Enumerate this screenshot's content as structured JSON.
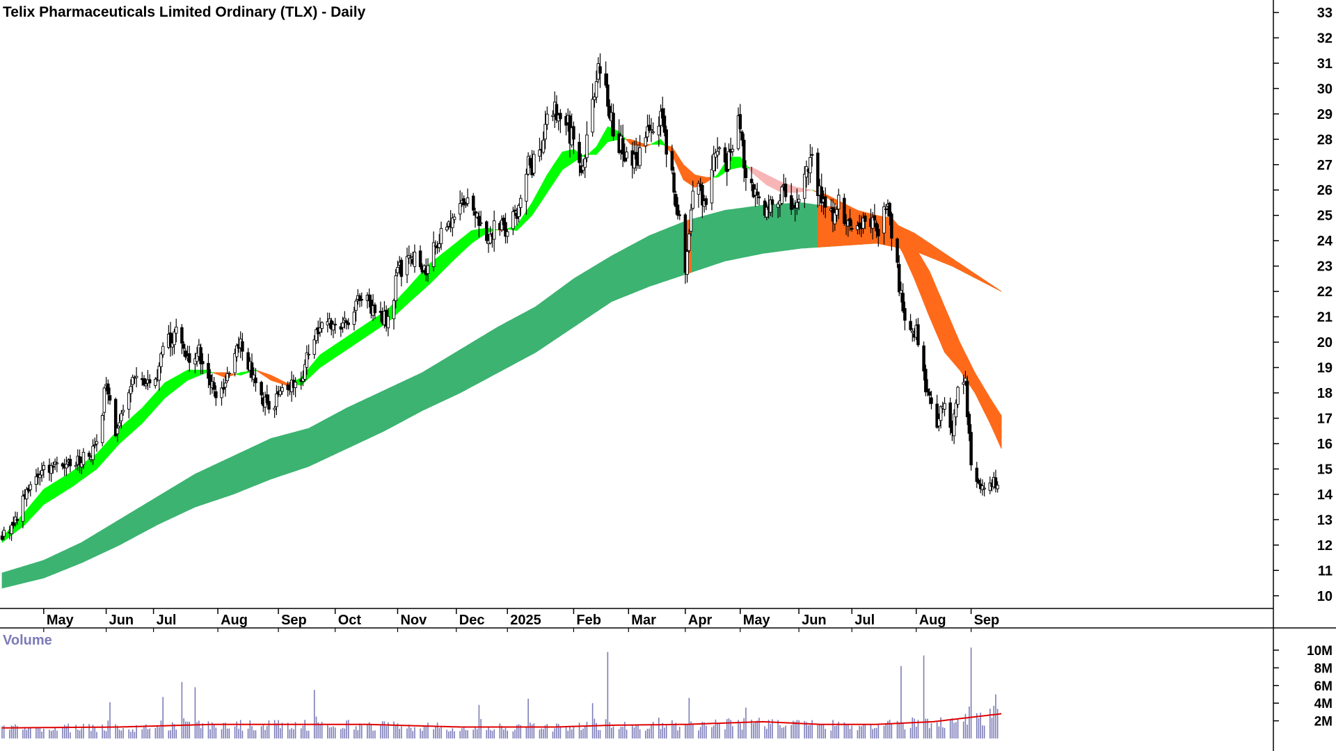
{
  "chart_data": [
    {
      "type": "candlestick",
      "title": "Telix Pharmaceuticals Limited Ordinary (TLX) - Daily",
      "ylim": [
        9.5,
        33.3
      ],
      "y_ticks": [
        10,
        11,
        12,
        13,
        14,
        15,
        16,
        17,
        18,
        19,
        20,
        21,
        22,
        23,
        24,
        25,
        26,
        27,
        28,
        29,
        30,
        31,
        32,
        33
      ],
      "x_ticks": [
        {
          "label": "May",
          "day": 60
        },
        {
          "label": "Jun",
          "day": 93
        },
        {
          "label": "Jul",
          "day": 118
        },
        {
          "label": "Aug",
          "day": 152
        },
        {
          "label": "Sep",
          "day": 184
        },
        {
          "label": "Oct",
          "day": 214
        },
        {
          "label": "Nov",
          "day": 247
        },
        {
          "label": "Dec",
          "day": 278
        },
        {
          "label": "2025",
          "day": 305
        },
        {
          "label": "Feb",
          "day": 340
        },
        {
          "label": "Mar",
          "day": 369
        },
        {
          "label": "Apr",
          "day": 399
        },
        {
          "label": "May",
          "day": 428
        },
        {
          "label": "Jun",
          "day": 459
        },
        {
          "label": "Jul",
          "day": 487
        },
        {
          "label": "Aug",
          "day": 521
        },
        {
          "label": "Sep",
          "day": 550
        }
      ],
      "x_range_days": [
        38,
        570
      ],
      "price_path": [
        {
          "day": 38,
          "close": 12.3
        },
        {
          "day": 45,
          "close": 12.9
        },
        {
          "day": 50,
          "close": 14.0
        },
        {
          "day": 55,
          "close": 14.9
        },
        {
          "day": 60,
          "close": 15.0
        },
        {
          "day": 70,
          "close": 15.2
        },
        {
          "day": 80,
          "close": 15.4
        },
        {
          "day": 88,
          "close": 15.9
        },
        {
          "day": 93,
          "close": 18.4
        },
        {
          "day": 98,
          "close": 16.4
        },
        {
          "day": 104,
          "close": 18.2
        },
        {
          "day": 110,
          "close": 18.6
        },
        {
          "day": 118,
          "close": 18.4
        },
        {
          "day": 124,
          "close": 19.8
        },
        {
          "day": 130,
          "close": 20.4
        },
        {
          "day": 136,
          "close": 19.4
        },
        {
          "day": 142,
          "close": 19.6
        },
        {
          "day": 148,
          "close": 18.6
        },
        {
          "day": 152,
          "close": 17.9
        },
        {
          "day": 157,
          "close": 18.6
        },
        {
          "day": 162,
          "close": 19.7
        },
        {
          "day": 166,
          "close": 19.9
        },
        {
          "day": 170,
          "close": 18.6
        },
        {
          "day": 175,
          "close": 17.9
        },
        {
          "day": 180,
          "close": 17.3
        },
        {
          "day": 184,
          "close": 17.8
        },
        {
          "day": 190,
          "close": 18.4
        },
        {
          "day": 195,
          "close": 18.2
        },
        {
          "day": 200,
          "close": 19.6
        },
        {
          "day": 206,
          "close": 20.6
        },
        {
          "day": 212,
          "close": 20.7
        },
        {
          "day": 218,
          "close": 20.5
        },
        {
          "day": 224,
          "close": 21.4
        },
        {
          "day": 230,
          "close": 21.8
        },
        {
          "day": 236,
          "close": 21.1
        },
        {
          "day": 242,
          "close": 20.9
        },
        {
          "day": 247,
          "close": 22.6
        },
        {
          "day": 252,
          "close": 23.5
        },
        {
          "day": 258,
          "close": 23.0
        },
        {
          "day": 263,
          "close": 22.9
        },
        {
          "day": 268,
          "close": 24.0
        },
        {
          "day": 274,
          "close": 24.9
        },
        {
          "day": 278,
          "close": 25.0
        },
        {
          "day": 284,
          "close": 25.4
        },
        {
          "day": 290,
          "close": 24.9
        },
        {
          "day": 295,
          "close": 24.2
        },
        {
          "day": 300,
          "close": 24.6
        },
        {
          "day": 305,
          "close": 24.3
        },
        {
          "day": 310,
          "close": 25.2
        },
        {
          "day": 316,
          "close": 26.9
        },
        {
          "day": 322,
          "close": 27.3
        },
        {
          "day": 328,
          "close": 29.2
        },
        {
          "day": 334,
          "close": 29.3
        },
        {
          "day": 340,
          "close": 27.8
        },
        {
          "day": 345,
          "close": 26.9
        },
        {
          "day": 350,
          "close": 29.8
        },
        {
          "day": 355,
          "close": 31.2
        },
        {
          "day": 360,
          "close": 28.7
        },
        {
          "day": 365,
          "close": 27.7
        },
        {
          "day": 370,
          "close": 27.2
        },
        {
          "day": 376,
          "close": 27.3
        },
        {
          "day": 381,
          "close": 28.6
        },
        {
          "day": 386,
          "close": 28.9
        },
        {
          "day": 391,
          "close": 26.8
        },
        {
          "day": 396,
          "close": 24.6
        },
        {
          "day": 399,
          "close": 22.6
        },
        {
          "day": 404,
          "close": 26.4
        },
        {
          "day": 410,
          "close": 25.2
        },
        {
          "day": 416,
          "close": 27.9
        },
        {
          "day": 421,
          "close": 26.7
        },
        {
          "day": 426,
          "close": 28.9
        },
        {
          "day": 431,
          "close": 26.8
        },
        {
          "day": 436,
          "close": 25.9
        },
        {
          "day": 441,
          "close": 25.4
        },
        {
          "day": 446,
          "close": 25.5
        },
        {
          "day": 451,
          "close": 26.2
        },
        {
          "day": 456,
          "close": 25.4
        },
        {
          "day": 461,
          "close": 26.1
        },
        {
          "day": 466,
          "close": 27.1
        },
        {
          "day": 471,
          "close": 25.6
        },
        {
          "day": 476,
          "close": 24.9
        },
        {
          "day": 481,
          "close": 25.5
        },
        {
          "day": 486,
          "close": 24.3
        },
        {
          "day": 491,
          "close": 24.2
        },
        {
          "day": 496,
          "close": 25.1
        },
        {
          "day": 501,
          "close": 24.3
        },
        {
          "day": 506,
          "close": 25.4
        },
        {
          "day": 510,
          "close": 23.3
        },
        {
          "day": 514,
          "close": 21.2
        },
        {
          "day": 518,
          "close": 20.8
        },
        {
          "day": 522,
          "close": 20.2
        },
        {
          "day": 525,
          "close": 18.6
        },
        {
          "day": 528,
          "close": 17.8
        },
        {
          "day": 532,
          "close": 16.7
        },
        {
          "day": 536,
          "close": 17.7
        },
        {
          "day": 540,
          "close": 16.6
        },
        {
          "day": 544,
          "close": 18.6
        },
        {
          "day": 547,
          "close": 18.3
        },
        {
          "day": 550,
          "close": 15.1
        },
        {
          "day": 554,
          "close": 14.4
        },
        {
          "day": 558,
          "close": 13.9
        },
        {
          "day": 562,
          "close": 14.6
        },
        {
          "day": 565,
          "close": 13.9
        }
      ],
      "short_band": [
        {
          "day": 38,
          "fast": 12.3,
          "slow": 12.1
        },
        {
          "day": 50,
          "fast": 13.3,
          "slow": 12.8
        },
        {
          "day": 60,
          "fast": 14.2,
          "slow": 13.6
        },
        {
          "day": 75,
          "fast": 14.9,
          "slow": 14.3
        },
        {
          "day": 88,
          "fast": 15.6,
          "slow": 15.0
        },
        {
          "day": 100,
          "fast": 16.6,
          "slow": 16.0
        },
        {
          "day": 112,
          "fast": 17.4,
          "slow": 16.8
        },
        {
          "day": 124,
          "fast": 18.4,
          "slow": 17.8
        },
        {
          "day": 136,
          "fast": 18.9,
          "slow": 18.5
        },
        {
          "day": 146,
          "fast": 18.9,
          "slow": 18.8
        },
        {
          "day": 156,
          "fast": 18.6,
          "slow": 18.8
        },
        {
          "day": 164,
          "fast": 18.8,
          "slow": 18.7
        },
        {
          "day": 172,
          "fast": 18.9,
          "slow": 18.9
        },
        {
          "day": 180,
          "fast": 18.5,
          "slow": 18.7
        },
        {
          "day": 188,
          "fast": 18.3,
          "slow": 18.4
        },
        {
          "day": 196,
          "fast": 18.6,
          "slow": 18.3
        },
        {
          "day": 206,
          "fast": 19.5,
          "slow": 19.0
        },
        {
          "day": 218,
          "fast": 20.1,
          "slow": 19.6
        },
        {
          "day": 230,
          "fast": 20.7,
          "slow": 20.2
        },
        {
          "day": 242,
          "fast": 21.3,
          "slow": 20.8
        },
        {
          "day": 252,
          "fast": 22.1,
          "slow": 21.5
        },
        {
          "day": 264,
          "fast": 23.1,
          "slow": 22.3
        },
        {
          "day": 276,
          "fast": 23.8,
          "slow": 23.2
        },
        {
          "day": 286,
          "fast": 24.4,
          "slow": 23.9
        },
        {
          "day": 294,
          "fast": 24.5,
          "slow": 24.3
        },
        {
          "day": 302,
          "fast": 24.4,
          "slow": 24.5
        },
        {
          "day": 310,
          "fast": 24.6,
          "slow": 24.4
        },
        {
          "day": 318,
          "fast": 25.5,
          "slow": 25.0
        },
        {
          "day": 326,
          "fast": 26.6,
          "slow": 25.9
        },
        {
          "day": 334,
          "fast": 27.5,
          "slow": 26.8
        },
        {
          "day": 340,
          "fast": 27.6,
          "slow": 27.1
        },
        {
          "day": 346,
          "fast": 27.3,
          "slow": 27.4
        },
        {
          "day": 352,
          "fast": 27.7,
          "slow": 27.4
        },
        {
          "day": 358,
          "fast": 28.5,
          "slow": 27.9
        },
        {
          "day": 364,
          "fast": 28.3,
          "slow": 28.0
        },
        {
          "day": 370,
          "fast": 27.8,
          "slow": 28.0
        },
        {
          "day": 378,
          "fast": 27.7,
          "slow": 27.8
        },
        {
          "day": 386,
          "fast": 28.0,
          "slow": 27.8
        },
        {
          "day": 392,
          "fast": 27.4,
          "slow": 27.7
        },
        {
          "day": 398,
          "fast": 26.4,
          "slow": 27.0
        },
        {
          "day": 404,
          "fast": 26.1,
          "slow": 26.6
        },
        {
          "day": 410,
          "fast": 26.3,
          "slow": 26.5
        },
        {
          "day": 416,
          "fast": 26.6,
          "slow": 26.5
        },
        {
          "day": 422,
          "fast": 27.3,
          "slow": 26.8
        },
        {
          "day": 428,
          "fast": 27.3,
          "slow": 26.9
        },
        {
          "day": 434,
          "fast": 26.7,
          "slow": 26.9
        },
        {
          "day": 442,
          "fast": 26.2,
          "slow": 26.6
        },
        {
          "day": 450,
          "fast": 25.9,
          "slow": 26.3
        },
        {
          "day": 458,
          "fast": 25.9,
          "slow": 26.1
        },
        {
          "day": 466,
          "fast": 26.0,
          "slow": 26.0
        },
        {
          "day": 474,
          "fast": 25.7,
          "slow": 25.8
        },
        {
          "day": 482,
          "fast": 25.2,
          "slow": 25.5
        },
        {
          "day": 490,
          "fast": 24.8,
          "slow": 25.2
        },
        {
          "day": 500,
          "fast": 24.6,
          "slow": 25.0
        },
        {
          "day": 508,
          "fast": 24.3,
          "slow": 24.9
        },
        {
          "day": 514,
          "fast": 23.5,
          "slow": 24.4
        },
        {
          "day": 520,
          "fast": 22.5,
          "slow": 23.8
        },
        {
          "day": 528,
          "fast": 21.0,
          "slow": 22.8
        },
        {
          "day": 536,
          "fast": 19.6,
          "slow": 21.4
        },
        {
          "day": 544,
          "fast": 18.9,
          "slow": 20.0
        },
        {
          "day": 552,
          "fast": 18.0,
          "slow": 18.8
        },
        {
          "day": 560,
          "fast": 16.8,
          "slow": 17.8
        },
        {
          "day": 566,
          "fast": 15.8,
          "slow": 17.1
        }
      ],
      "long_band": [
        {
          "day": 38,
          "fast": 10.9,
          "slow": 10.3
        },
        {
          "day": 60,
          "fast": 11.4,
          "slow": 10.7
        },
        {
          "day": 80,
          "fast": 12.1,
          "slow": 11.3
        },
        {
          "day": 100,
          "fast": 13.0,
          "slow": 12.0
        },
        {
          "day": 120,
          "fast": 13.9,
          "slow": 12.8
        },
        {
          "day": 140,
          "fast": 14.8,
          "slow": 13.5
        },
        {
          "day": 160,
          "fast": 15.5,
          "slow": 14.0
        },
        {
          "day": 180,
          "fast": 16.2,
          "slow": 14.6
        },
        {
          "day": 200,
          "fast": 16.6,
          "slow": 15.1
        },
        {
          "day": 220,
          "fast": 17.4,
          "slow": 15.8
        },
        {
          "day": 240,
          "fast": 18.1,
          "slow": 16.5
        },
        {
          "day": 260,
          "fast": 18.8,
          "slow": 17.3
        },
        {
          "day": 280,
          "fast": 19.7,
          "slow": 18.0
        },
        {
          "day": 300,
          "fast": 20.6,
          "slow": 18.8
        },
        {
          "day": 320,
          "fast": 21.4,
          "slow": 19.6
        },
        {
          "day": 340,
          "fast": 22.5,
          "slow": 20.6
        },
        {
          "day": 360,
          "fast": 23.4,
          "slow": 21.6
        },
        {
          "day": 380,
          "fast": 24.2,
          "slow": 22.2
        },
        {
          "day": 400,
          "fast": 24.8,
          "slow": 22.7
        },
        {
          "day": 420,
          "fast": 25.2,
          "slow": 23.2
        },
        {
          "day": 440,
          "fast": 25.4,
          "slow": 23.5
        },
        {
          "day": 460,
          "fast": 25.5,
          "slow": 23.7
        },
        {
          "day": 480,
          "fast": 25.3,
          "slow": 23.8
        },
        {
          "day": 500,
          "fast": 25.0,
          "slow": 23.9
        },
        {
          "day": 520,
          "fast": 24.3,
          "slow": 23.6
        },
        {
          "day": 540,
          "fast": 23.3,
          "slow": 23.0
        },
        {
          "day": 566,
          "fast": 22.0,
          "slow": 22.0
        }
      ],
      "colors": {
        "short_up": "#00ff00",
        "short_down_orange": "#ff6a1a",
        "short_down_pink": "#f7b5b5",
        "long_up": "#3cb371",
        "long_down": "#ff6a1a",
        "candle": "#000000",
        "volume_bar": "#7b7bb8",
        "volume_avg": "#e00000"
      }
    },
    {
      "type": "bar",
      "title": "Volume",
      "unit": "M",
      "ylim": [
        0,
        11
      ],
      "y_ticks": [
        "2M",
        "4M",
        "6M",
        "8M",
        "10M"
      ],
      "volume_profile": [
        {
          "day": 38,
          "avg": 1.2
        },
        {
          "day": 100,
          "avg": 1.3
        },
        {
          "day": 150,
          "avg": 1.6
        },
        {
          "day": 180,
          "avg": 1.6
        },
        {
          "day": 230,
          "avg": 1.6
        },
        {
          "day": 280,
          "avg": 1.3
        },
        {
          "day": 330,
          "avg": 1.3
        },
        {
          "day": 360,
          "avg": 1.5
        },
        {
          "day": 400,
          "avg": 1.6
        },
        {
          "day": 440,
          "avg": 1.9
        },
        {
          "day": 470,
          "avg": 1.6
        },
        {
          "day": 500,
          "avg": 1.6
        },
        {
          "day": 530,
          "avg": 1.9
        },
        {
          "day": 566,
          "avg": 2.8
        }
      ],
      "volume_spikes": [
        {
          "day": 48,
          "vol": 3.0
        },
        {
          "day": 95,
          "vol": 4.1
        },
        {
          "day": 123,
          "vol": 4.7
        },
        {
          "day": 133,
          "vol": 6.4
        },
        {
          "day": 140,
          "vol": 5.8
        },
        {
          "day": 203,
          "vol": 5.5
        },
        {
          "day": 290,
          "vol": 3.8
        },
        {
          "day": 316,
          "vol": 4.5
        },
        {
          "day": 350,
          "vol": 4.0
        },
        {
          "day": 358,
          "vol": 9.8
        },
        {
          "day": 384,
          "vol": 4.2
        },
        {
          "day": 401,
          "vol": 4.6
        },
        {
          "day": 431,
          "vol": 3.5
        },
        {
          "day": 513,
          "vol": 8.2
        },
        {
          "day": 525,
          "vol": 9.4
        },
        {
          "day": 550,
          "vol": 10.3
        },
        {
          "day": 563,
          "vol": 5.0
        }
      ]
    }
  ]
}
